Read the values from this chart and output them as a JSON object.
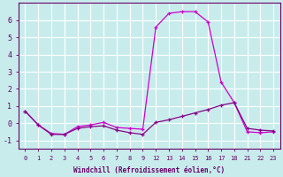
{
  "xlabel": "Windchill (Refroidissement éolien,°C)",
  "bg_color": "#c8ecec",
  "grid_color": "#ffffff",
  "line_color1": "#cc00cc",
  "line_color2": "#880088",
  "ylim": [
    -1.5,
    7.0
  ],
  "xtick_labels": [
    "0",
    "1",
    "2",
    "3",
    "4",
    "5",
    "6",
    "7",
    "8",
    "9",
    "12",
    "13",
    "14",
    "15",
    "16",
    "17",
    "18",
    "21",
    "22",
    "23"
  ],
  "yticks": [
    -1,
    0,
    1,
    2,
    3,
    4,
    5,
    6
  ],
  "curve1_y": [
    0.7,
    -0.1,
    -0.6,
    -0.65,
    -0.2,
    -0.1,
    0.05,
    -0.25,
    -0.3,
    -0.35,
    5.6,
    6.4,
    6.5,
    6.5,
    5.9,
    2.4,
    1.2,
    -0.5,
    -0.55,
    -0.5
  ],
  "curve2_y": [
    0.7,
    -0.1,
    -0.65,
    -0.65,
    -0.3,
    -0.2,
    -0.15,
    -0.4,
    -0.55,
    -0.65,
    0.05,
    0.2,
    0.4,
    0.6,
    0.8,
    1.05,
    1.2,
    -0.3,
    -0.4,
    -0.45
  ]
}
